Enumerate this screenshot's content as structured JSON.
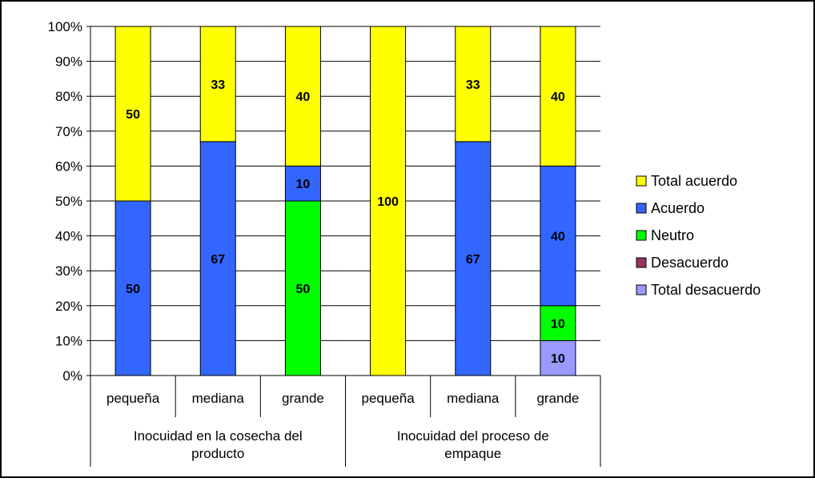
{
  "chart_data": {
    "type": "bar",
    "stacked": true,
    "percent_stacked": true,
    "title": "",
    "xlabel": "",
    "ylabel": "",
    "ylim": [
      0,
      100
    ],
    "y_ticks": [
      "0%",
      "10%",
      "20%",
      "30%",
      "40%",
      "50%",
      "60%",
      "70%",
      "80%",
      "90%",
      "100%"
    ],
    "grid": "horizontal",
    "legend_position": "right",
    "categories": [
      "pequeña",
      "mediana",
      "grande",
      "pequeña",
      "mediana",
      "grande"
    ],
    "groups": [
      {
        "label": "Inocuidad en la cosecha del producto",
        "categories": [
          0,
          1,
          2
        ]
      },
      {
        "label": "Inocuidad del proceso de empaque",
        "categories": [
          3,
          4,
          5
        ]
      }
    ],
    "series": [
      {
        "name": "Total desacuerdo",
        "color": "#9999ff",
        "values": [
          0,
          0,
          0,
          0,
          0,
          10
        ]
      },
      {
        "name": "Desacuerdo",
        "color": "#993366",
        "values": [
          0,
          0,
          0,
          0,
          0,
          0
        ]
      },
      {
        "name": "Neutro",
        "color": "#00ff00",
        "values": [
          0,
          0,
          50,
          0,
          0,
          10
        ]
      },
      {
        "name": "Acuerdo",
        "color": "#3366ff",
        "values": [
          50,
          67,
          10,
          0,
          67,
          40
        ]
      },
      {
        "name": "Total acuerdo",
        "color": "#ffff00",
        "values": [
          50,
          33,
          40,
          100,
          33,
          40
        ]
      }
    ],
    "legend_order": [
      "Total acuerdo",
      "Acuerdo",
      "Neutro",
      "Desacuerdo",
      "Total desacuerdo"
    ]
  }
}
